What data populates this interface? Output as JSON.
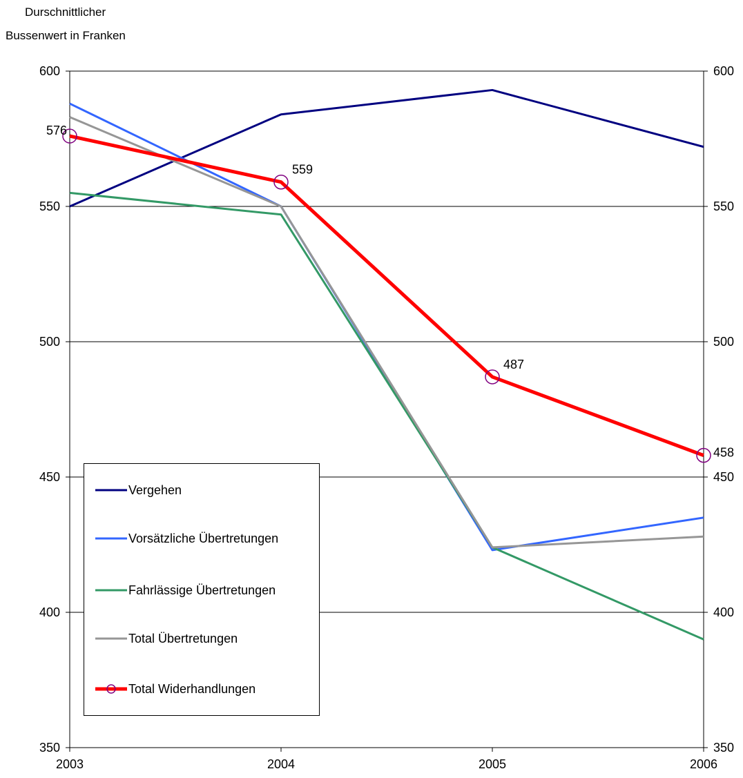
{
  "chart_data": {
    "type": "line",
    "ylabel_lines": [
      "Durschnittlicher",
      "Bussenwert in Franken"
    ],
    "categories": [
      "2003",
      "2004",
      "2005",
      "2006"
    ],
    "ylim": [
      350,
      600
    ],
    "yticks": [
      350,
      400,
      450,
      500,
      550,
      600
    ],
    "right_axis_ticks": [
      350,
      400,
      450,
      500,
      550,
      600
    ],
    "grid": "horizontal",
    "legend_position": "bottom-left",
    "series": [
      {
        "name": "Vergehen",
        "values": [
          550,
          584,
          593,
          572
        ],
        "color": "#000080",
        "marker": "none"
      },
      {
        "name": "Vorsätzliche Übertretungen",
        "values": [
          588,
          550,
          423,
          435
        ],
        "color": "#3366ff",
        "marker": "none"
      },
      {
        "name": "Fahrlässige Übertretungen",
        "values": [
          555,
          547,
          424,
          390
        ],
        "color": "#339966",
        "marker": "none"
      },
      {
        "name": "Total Übertretungen",
        "values": [
          583,
          550,
          424,
          428
        ],
        "color": "#969696",
        "marker": "none"
      },
      {
        "name": "Total Widerhandlungen",
        "values": [
          576,
          559,
          487,
          458
        ],
        "color": "#ff0000",
        "marker": "circle",
        "marker_color": "#800080",
        "data_labels": [
          "576",
          "559",
          "487",
          "458"
        ]
      }
    ]
  }
}
